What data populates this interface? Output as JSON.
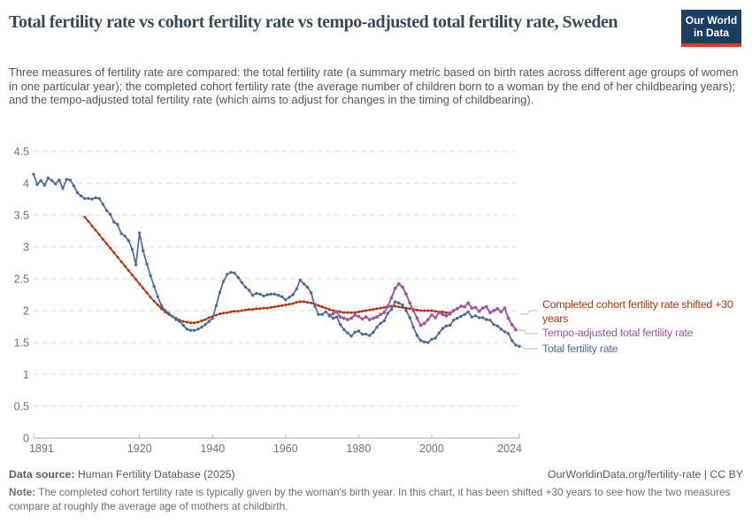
{
  "header": {
    "title": "Total fertility rate vs cohort fertility rate vs tempo-adjusted total fertility rate, Sweden",
    "subtitle": "Three measures of fertility rate are compared: the total fertility rate (a summary metric based on birth rates across different age groups of women in one particular year); the completed cohort fertility rate (the average number of children born to a woman by the end of her childbearing years); and the tempo-adjusted total fertility rate (which aims to adjust for changes in the timing of childbearing).",
    "logo_line1": "Our World",
    "logo_line2": "in Data"
  },
  "colors": {
    "logo_bg": "#1d3d63",
    "logo_bar": "#dc3a27",
    "grid": "#dcdcdc",
    "axis": "#a5a5a5",
    "tick_text": "#737373",
    "connector": "#b9b9b9"
  },
  "chart_data": {
    "type": "line",
    "title": "Total fertility rate vs cohort fertility rate vs tempo-adjusted total fertility rate, Sweden",
    "xlabel": "",
    "ylabel": "",
    "x_range": [
      1891,
      2024
    ],
    "y_range": [
      0,
      4.5
    ],
    "x_ticks": [
      1891,
      1920,
      1940,
      1960,
      1980,
      2000,
      2024
    ],
    "y_ticks": [
      0,
      0.5,
      1,
      1.5,
      2,
      2.5,
      3,
      3.5,
      4,
      4.5
    ],
    "grid": "horizontal-dashed",
    "legend_position": "right",
    "series": [
      {
        "name": "Completed cohort fertility rate shifted +30 years",
        "color": "#B13507",
        "start_year": 1905,
        "values": [
          3.47,
          3.4,
          3.33,
          3.26,
          3.19,
          3.12,
          3.05,
          2.98,
          2.91,
          2.84,
          2.77,
          2.7,
          2.63,
          2.56,
          2.49,
          2.42,
          2.35,
          2.28,
          2.21,
          2.15,
          2.09,
          2.03,
          1.98,
          1.94,
          1.91,
          1.88,
          1.85,
          1.83,
          1.82,
          1.81,
          1.81,
          1.82,
          1.84,
          1.86,
          1.89,
          1.91,
          1.93,
          1.95,
          1.96,
          1.97,
          1.98,
          1.99,
          1.99,
          2.0,
          2.01,
          2.02,
          2.02,
          2.03,
          2.03,
          2.04,
          2.04,
          2.05,
          2.06,
          2.07,
          2.08,
          2.09,
          2.1,
          2.11,
          2.13,
          2.14,
          2.14,
          2.13,
          2.12,
          2.1,
          2.08,
          2.06,
          2.04,
          2.02,
          2.0,
          1.99,
          1.98,
          1.97,
          1.97,
          1.97,
          1.97,
          1.98,
          1.99,
          2.0,
          2.01,
          2.02,
          2.03,
          2.04,
          2.05,
          2.06,
          2.07,
          2.07,
          2.06,
          2.05,
          2.04,
          2.03,
          2.02,
          2.01,
          2.0,
          2.0,
          2.0,
          2.0,
          1.99,
          1.98,
          1.98,
          1.97,
          1.97
        ]
      },
      {
        "name": "Tempo-adjusted total fertility rate",
        "color": "#A2559C",
        "start_year": 1972,
        "values": [
          1.92,
          1.95,
          1.98,
          1.9,
          1.88,
          1.86,
          1.88,
          1.93,
          1.91,
          1.87,
          1.9,
          1.86,
          1.88,
          1.9,
          1.94,
          1.97,
          2.07,
          2.2,
          2.35,
          2.42,
          2.37,
          2.26,
          2.12,
          2.0,
          1.88,
          1.77,
          1.8,
          1.86,
          1.93,
          1.89,
          1.97,
          1.94,
          1.92,
          1.95,
          2.0,
          2.03,
          2.07,
          2.06,
          2.12,
          2.04,
          2.05,
          1.99,
          2.04,
          2.06,
          1.97,
          2.0,
          2.03,
          1.98,
          2.04,
          1.88,
          1.78,
          1.7
        ]
      },
      {
        "name": "Total fertility rate",
        "color": "#4C6A9C",
        "start_year": 1891,
        "values": [
          4.14,
          3.98,
          4.04,
          3.97,
          4.08,
          4.04,
          3.99,
          4.05,
          3.92,
          4.06,
          4.05,
          3.96,
          3.85,
          3.8,
          3.76,
          3.76,
          3.75,
          3.77,
          3.76,
          3.67,
          3.57,
          3.51,
          3.39,
          3.35,
          3.21,
          3.17,
          3.1,
          2.96,
          2.72,
          3.22,
          2.94,
          2.73,
          2.55,
          2.38,
          2.22,
          2.08,
          2.0,
          1.96,
          1.91,
          1.86,
          1.83,
          1.77,
          1.71,
          1.69,
          1.69,
          1.71,
          1.74,
          1.78,
          1.83,
          1.88,
          2.08,
          2.29,
          2.46,
          2.57,
          2.6,
          2.59,
          2.52,
          2.44,
          2.37,
          2.32,
          2.24,
          2.27,
          2.26,
          2.23,
          2.25,
          2.26,
          2.26,
          2.24,
          2.22,
          2.17,
          2.21,
          2.25,
          2.34,
          2.48,
          2.42,
          2.37,
          2.28,
          2.07,
          1.94,
          1.94,
          1.98,
          1.93,
          1.88,
          1.9,
          1.78,
          1.7,
          1.65,
          1.6,
          1.66,
          1.68,
          1.63,
          1.63,
          1.61,
          1.66,
          1.74,
          1.8,
          1.84,
          1.96,
          2.02,
          2.14,
          2.12,
          2.09,
          2.0,
          1.89,
          1.74,
          1.61,
          1.53,
          1.51,
          1.5,
          1.55,
          1.57,
          1.65,
          1.72,
          1.76,
          1.77,
          1.85,
          1.88,
          1.91,
          1.94,
          1.98,
          1.9,
          1.92,
          1.89,
          1.89,
          1.86,
          1.85,
          1.78,
          1.76,
          1.71,
          1.67,
          1.64,
          1.53,
          1.46,
          1.44
        ]
      }
    ]
  },
  "footer": {
    "source_label": "Data source:",
    "source_text": "Human Fertility Database (2025)",
    "link_text": "OurWorldinData.org/fertility-rate | CC BY",
    "note_label": "Note:",
    "note_text": "The completed cohort fertility rate is typically given by the woman's birth year. In this chart, it has been shifted +30 years to see how the two measures compare at roughly the average age of mothers at childbirth."
  }
}
